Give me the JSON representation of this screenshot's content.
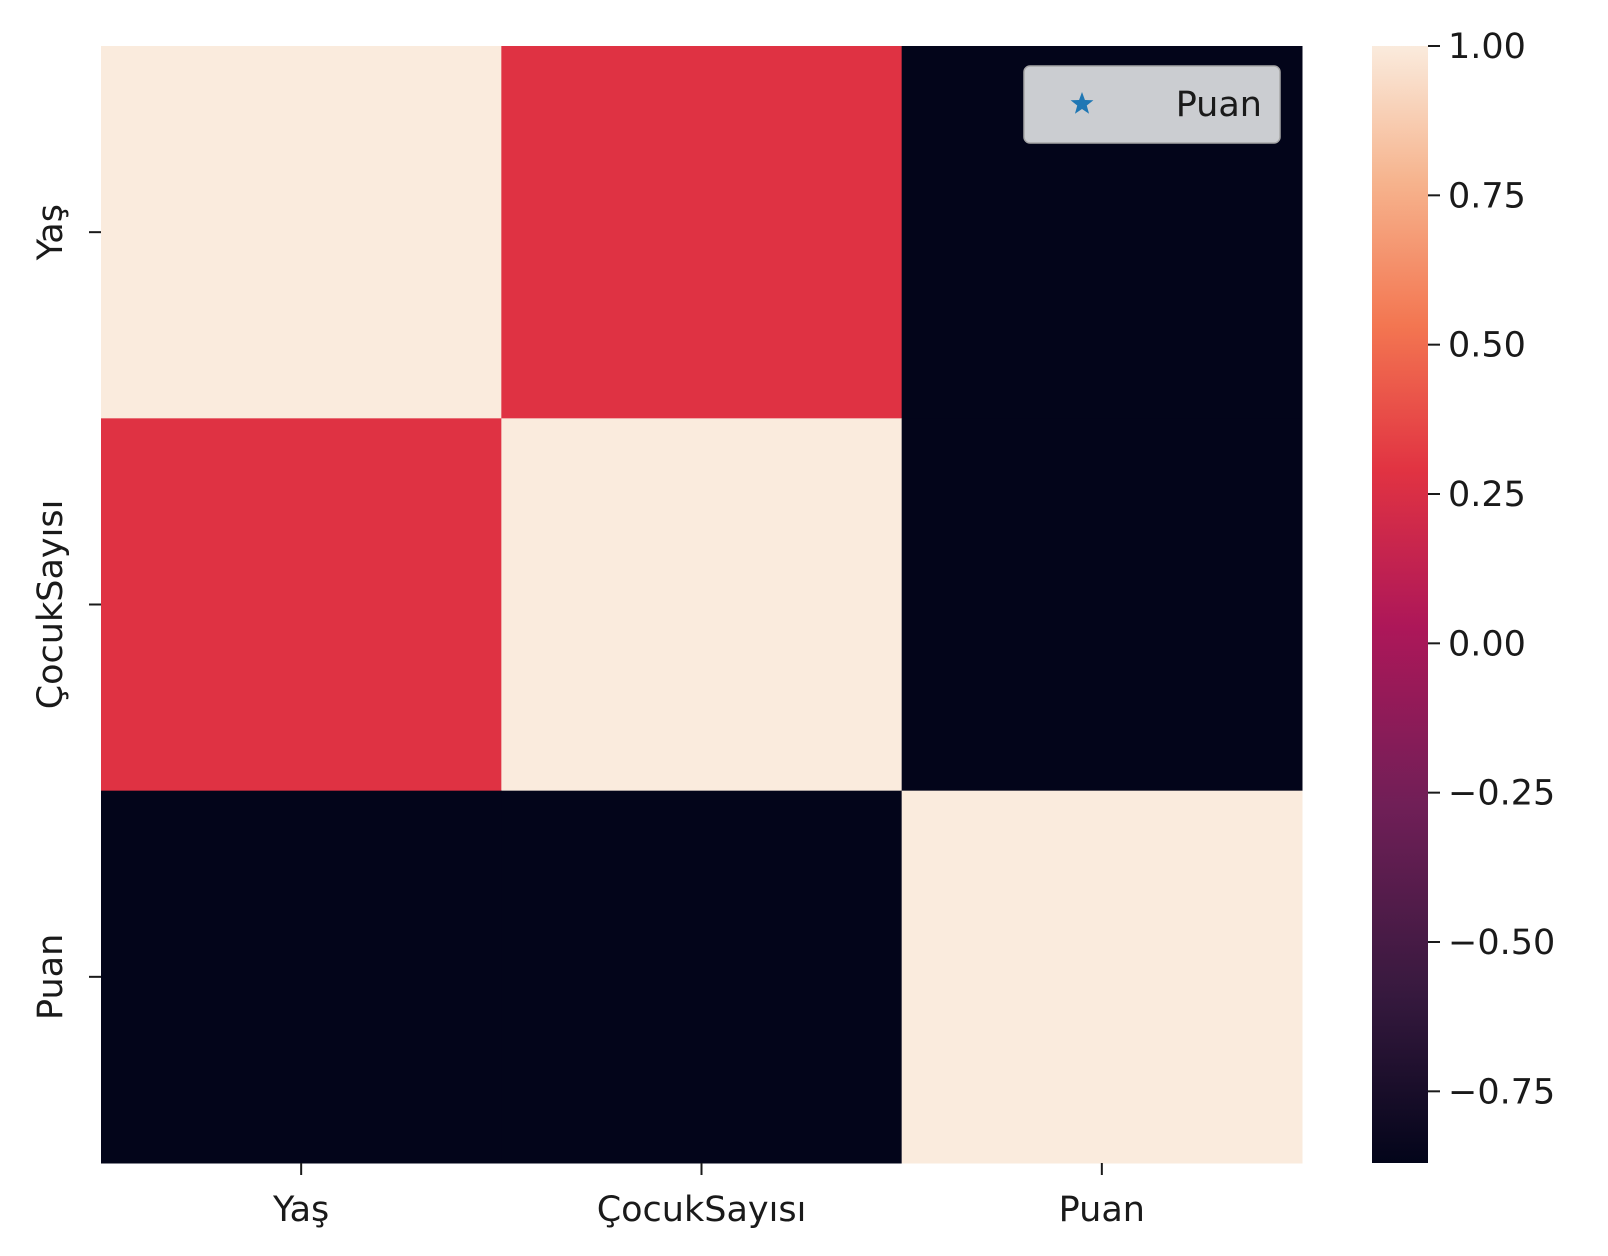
{
  "chart_data": {
    "type": "heatmap",
    "x_categories": [
      "Yaş",
      "ÇocukSayısı",
      "Puan"
    ],
    "y_categories": [
      "Yaş",
      "ÇocukSayısı",
      "Puan"
    ],
    "matrix": [
      [
        1.0,
        0.28,
        -0.87
      ],
      [
        0.28,
        1.0,
        -0.87
      ],
      [
        -0.87,
        -0.87,
        1.0
      ]
    ],
    "colorbar": {
      "range": [
        -0.87,
        1.0
      ],
      "ticks": [
        1.0,
        0.75,
        0.5,
        0.25,
        0.0,
        -0.25,
        -0.5,
        -0.75
      ],
      "tick_labels": [
        "1.00",
        "0.75",
        "0.50",
        "0.25",
        "0.00",
        "−0.25",
        "−0.50",
        "−0.75"
      ],
      "colormap": "rocket"
    },
    "legend": {
      "position": "top-right",
      "entries": [
        {
          "label": "Puan",
          "marker": "star-icon",
          "color": "#1f77b4"
        }
      ]
    },
    "grid": false
  }
}
